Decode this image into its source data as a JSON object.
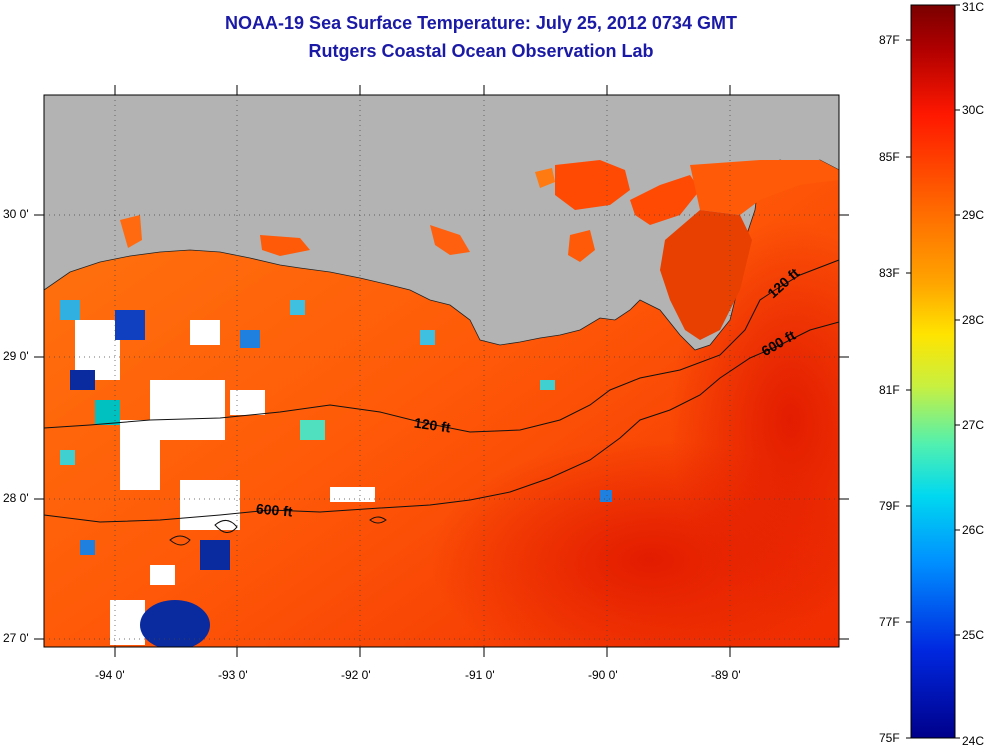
{
  "title_line1": "NOAA-19 Sea Surface Temperature:  July 25, 2012 0734 GMT",
  "title_line2": "Rutgers Coastal Ocean Observation Lab",
  "map": {
    "lat_labels": [
      "30 0'",
      "29 0'",
      "28 0'",
      "27 0'"
    ],
    "lon_labels": [
      "-94 0'",
      "-93 0'",
      "-92 0'",
      "-91 0'",
      "-90 0'",
      "-89 0'"
    ],
    "land_color": "#b3b3b3",
    "contour_labels": [
      "120 ft",
      "600 ft",
      "120 ft",
      "600 ft"
    ]
  },
  "colorbar": {
    "celsius_labels": [
      "31C",
      "30C",
      "29C",
      "28C",
      "27C",
      "26C",
      "25C",
      "24C"
    ],
    "fahrenheit_labels": [
      "87F",
      "85F",
      "83F",
      "81F",
      "79F",
      "77F",
      "75F"
    ],
    "colors": [
      "#7a0000",
      "#c80000",
      "#ff2000",
      "#ff6a00",
      "#ffa500",
      "#ffe000",
      "#c8f040",
      "#50f0b0",
      "#00d8f0",
      "#0090ff",
      "#0030e0",
      "#00008a"
    ]
  }
}
